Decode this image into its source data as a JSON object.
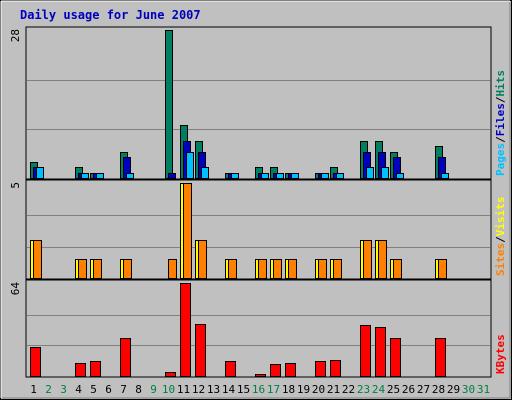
{
  "chart_data": {
    "type": "bar",
    "title": "Daily usage for June 2007",
    "days": [
      "1",
      "2",
      "3",
      "4",
      "5",
      "6",
      "7",
      "8",
      "9",
      "10",
      "11",
      "12",
      "13",
      "14",
      "15",
      "16",
      "17",
      "18",
      "19",
      "20",
      "21",
      "22",
      "23",
      "24",
      "25",
      "26",
      "27",
      "28",
      "29",
      "30",
      "31"
    ],
    "weekend_days": [
      "2",
      "3",
      "9",
      "10",
      "16",
      "17",
      "23",
      "24",
      "30",
      "31"
    ],
    "colors": {
      "hits": "#008060",
      "files": "#0000c0",
      "pages": "#00c0ff",
      "visits": "#ffff00",
      "sites": "#ff8000",
      "kbytes": "#ff0000",
      "title": "#0000c0",
      "weekend": "#008040",
      "weekday": "#000000"
    },
    "panels": [
      {
        "id": "top",
        "scale_label": "28",
        "ylim": [
          0,
          28
        ],
        "legend": [
          {
            "text": "Pages",
            "color": "#00c0ff"
          },
          {
            "text": "/",
            "color": "#000000"
          },
          {
            "text": "Files",
            "color": "#0000c0"
          },
          {
            "text": "/",
            "color": "#000000"
          },
          {
            "text": "Hits",
            "color": "#008060"
          }
        ],
        "series": [
          {
            "key": "hits",
            "values": [
              3,
              0,
              0,
              2,
              1,
              0,
              5,
              0,
              0,
              28,
              10,
              7,
              0,
              1,
              0,
              2,
              2,
              1,
              0,
              1,
              2,
              0,
              7,
              7,
              5,
              0,
              0,
              6,
              0,
              0,
              0
            ]
          },
          {
            "key": "files",
            "values": [
              2,
              0,
              0,
              1,
              1,
              0,
              4,
              0,
              0,
              1,
              7,
              5,
              0,
              1,
              0,
              1,
              1,
              1,
              0,
              1,
              1,
              0,
              5,
              5,
              4,
              0,
              0,
              4,
              0,
              0,
              0
            ]
          },
          {
            "key": "pages",
            "values": [
              2,
              0,
              0,
              1,
              1,
              0,
              1,
              0,
              0,
              0,
              5,
              2,
              0,
              1,
              0,
              1,
              1,
              1,
              0,
              1,
              1,
              0,
              2,
              2,
              1,
              0,
              0,
              1,
              0,
              0,
              0
            ]
          }
        ]
      },
      {
        "id": "middle",
        "scale_label": "5",
        "ylim": [
          0,
          5
        ],
        "legend": [
          {
            "text": "Sites",
            "color": "#ff8000"
          },
          {
            "text": "/",
            "color": "#000000"
          },
          {
            "text": "Visits",
            "color": "#ffff00"
          }
        ],
        "series": [
          {
            "key": "visits",
            "values": [
              2,
              0,
              0,
              1,
              1,
              0,
              1,
              0,
              0,
              0,
              5,
              2,
              0,
              1,
              0,
              1,
              1,
              1,
              0,
              1,
              1,
              0,
              2,
              2,
              1,
              0,
              0,
              1,
              0,
              0,
              0
            ]
          },
          {
            "key": "sites",
            "values": [
              2,
              0,
              0,
              1,
              1,
              0,
              1,
              0,
              0,
              1,
              5,
              2,
              0,
              1,
              0,
              1,
              1,
              1,
              0,
              1,
              1,
              0,
              2,
              2,
              1,
              0,
              0,
              1,
              0,
              0,
              0
            ]
          }
        ]
      },
      {
        "id": "bottom",
        "scale_label": "64",
        "ylim": [
          0,
          64
        ],
        "legend": [
          {
            "text": "KBytes",
            "color": "#ff0000"
          }
        ],
        "series": [
          {
            "key": "kbytes",
            "values": [
              20,
              0,
              0,
              9,
              10,
              0,
              26,
              0,
              0,
              3,
              64,
              36,
              0,
              10,
              0,
              1,
              8,
              9,
              0,
              10,
              11,
              0,
              35,
              34,
              26,
              0,
              0,
              26,
              0,
              0,
              0
            ]
          }
        ]
      }
    ]
  }
}
